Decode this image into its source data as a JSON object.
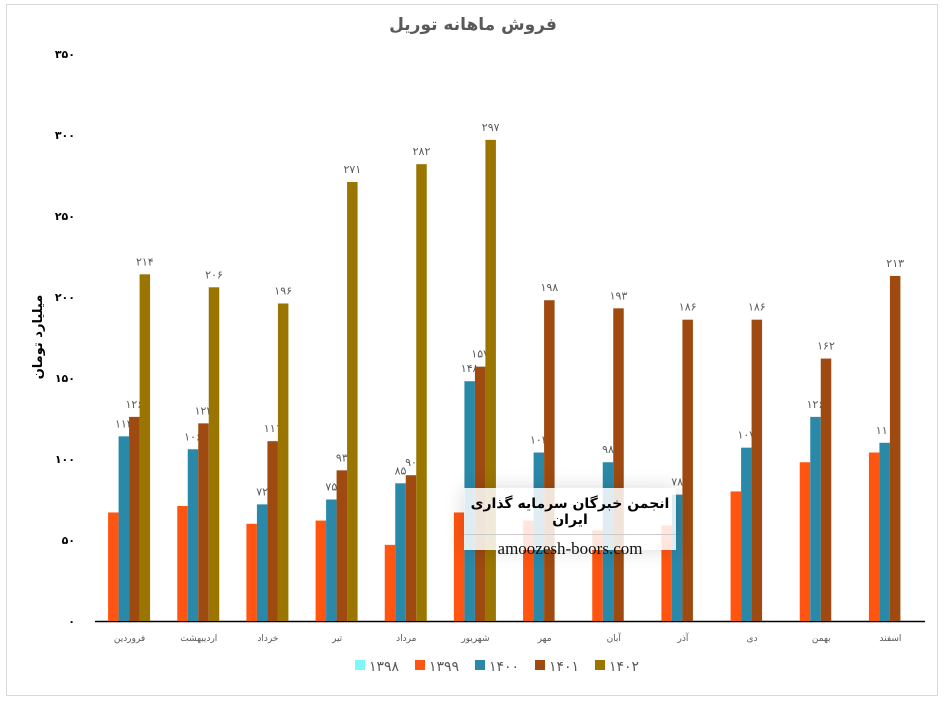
{
  "chart_data": {
    "type": "bar",
    "title": "فروش ماهانه توریل",
    "xlabel": "",
    "ylabel": "میلیارد تومان",
    "ylim": [
      0,
      350
    ],
    "yticks": [
      0,
      50,
      100,
      150,
      200,
      250,
      300,
      350
    ],
    "ytick_labels": [
      "۰",
      "۵۰",
      "۱۰۰",
      "۱۵۰",
      "۲۰۰",
      "۲۵۰",
      "۳۰۰",
      "۳۵۰"
    ],
    "grid": false,
    "legend_position": "bottom",
    "categories": [
      "فروردین",
      "اردیبهشت",
      "خرداد",
      "تیر",
      "مرداد",
      "شهریور",
      "مهر",
      "آبان",
      "آذر",
      "دی",
      "بهمن",
      "اسفند"
    ],
    "series": [
      {
        "name": "۱۳۹۸",
        "color": "#7ff7f7",
        "values": [
          null,
          null,
          null,
          null,
          null,
          null,
          null,
          null,
          null,
          null,
          null,
          null
        ],
        "labeled": false
      },
      {
        "name": "۱۳۹۹",
        "color": "#ff5511",
        "values": [
          67,
          71,
          60,
          62,
          47,
          67,
          62,
          56,
          59,
          80,
          98,
          104
        ],
        "labeled": false
      },
      {
        "name": "۱۴۰۰",
        "color": "#2a88a8",
        "values": [
          114,
          106,
          72,
          75,
          85,
          148,
          104,
          98,
          78,
          107,
          126,
          110
        ],
        "labeled": true
      },
      {
        "name": "۱۴۰۱",
        "color": "#9e4a10",
        "values": [
          126,
          122,
          111,
          93,
          90,
          157,
          198,
          193,
          186,
          186,
          162,
          213
        ],
        "labeled": true
      },
      {
        "name": "۱۴۰۲",
        "color": "#9a7600",
        "values": [
          214,
          206,
          196,
          271,
          282,
          297,
          null,
          null,
          null,
          null,
          null,
          null
        ],
        "labeled": true
      }
    ]
  },
  "watermark": {
    "line1": "انجمن خبرگان سرمایه گذاری ایران",
    "line2": "amoozesh-boors.com"
  }
}
